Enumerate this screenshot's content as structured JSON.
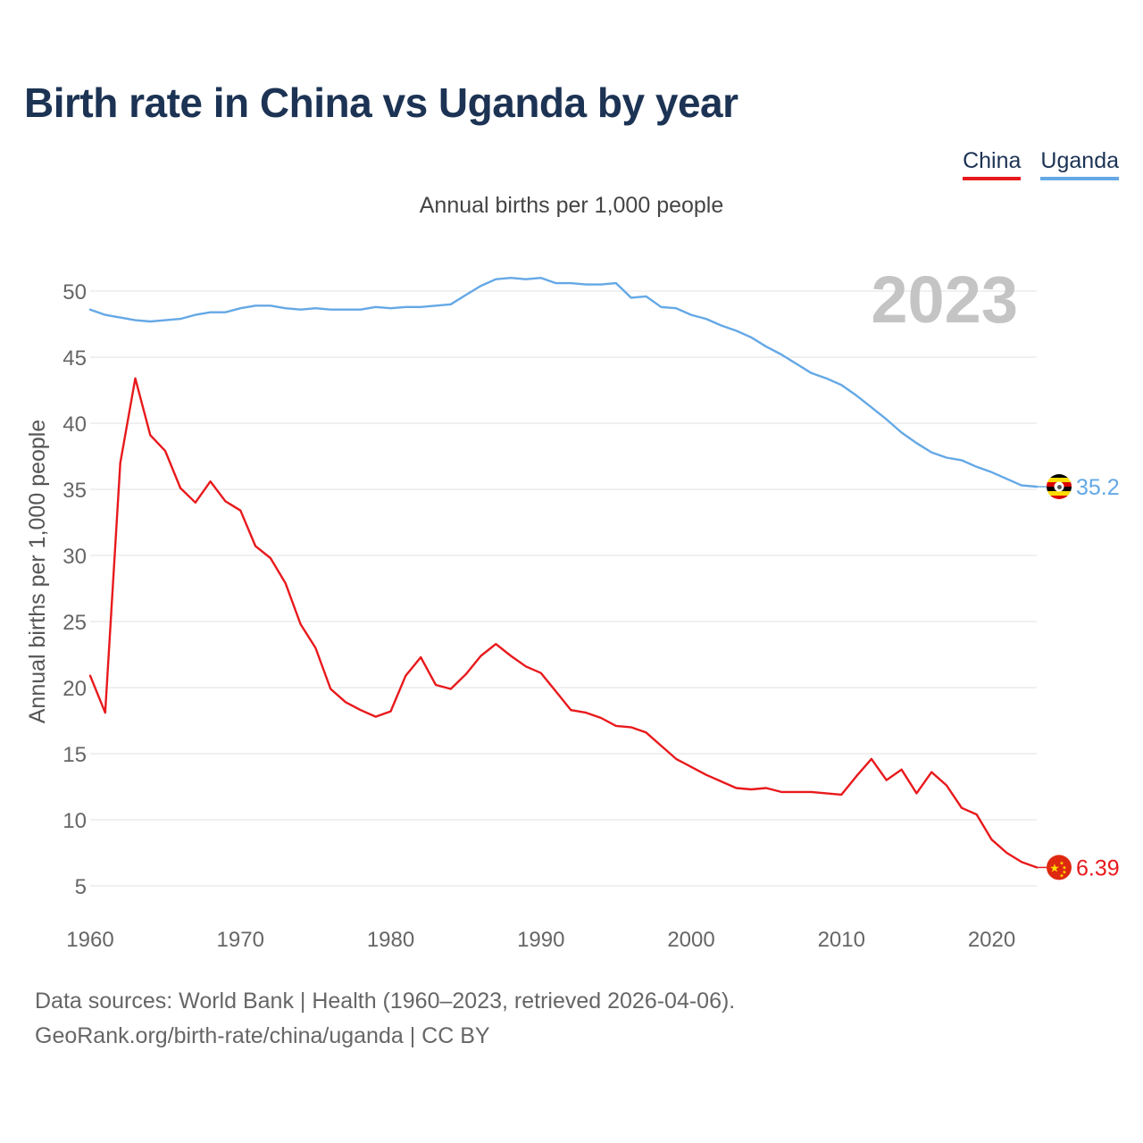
{
  "title": "Birth rate in China vs Uganda by year",
  "subtitle": "Annual births per 1,000 people",
  "year_watermark": "2023",
  "source_line1": "Data sources: World Bank | Health (1960–2023, retrieved 2026-04-06).",
  "source_line2": "GeoRank.org/birth-rate/china/uganda | CC BY",
  "colors": {
    "china": "#e8191c",
    "uganda": "#64a8e6",
    "grid": "#e6e6e6",
    "axis_text": "#666666",
    "title": "#1c3354",
    "watermark": "#c4c4c4"
  },
  "chart_data": {
    "type": "line",
    "ylabel": "Annual births per 1,000 people",
    "xlabel": "",
    "xlim": [
      1960,
      2023
    ],
    "ylim": [
      3,
      53
    ],
    "yticks": [
      5,
      10,
      15,
      20,
      25,
      30,
      35,
      40,
      45,
      50
    ],
    "xticks": [
      1960,
      1970,
      1980,
      1990,
      2000,
      2010,
      2020
    ],
    "legend_position": "top-right",
    "series": [
      {
        "name": "China",
        "color": "#e8191c",
        "end_label": "6.39",
        "flag": "china-flag",
        "x": [
          1960,
          1961,
          1962,
          1963,
          1964,
          1965,
          1966,
          1967,
          1968,
          1969,
          1970,
          1971,
          1972,
          1973,
          1974,
          1975,
          1976,
          1977,
          1978,
          1979,
          1980,
          1981,
          1982,
          1983,
          1984,
          1985,
          1986,
          1987,
          1988,
          1989,
          1990,
          1991,
          1992,
          1993,
          1994,
          1995,
          1996,
          1997,
          1998,
          1999,
          2000,
          2001,
          2002,
          2003,
          2004,
          2005,
          2006,
          2007,
          2008,
          2009,
          2010,
          2011,
          2012,
          2013,
          2014,
          2015,
          2016,
          2017,
          2018,
          2019,
          2020,
          2021,
          2022,
          2023
        ],
        "values": [
          20.9,
          18.1,
          37.0,
          43.4,
          39.1,
          37.9,
          35.1,
          34.0,
          35.6,
          34.1,
          33.4,
          30.7,
          29.8,
          27.9,
          24.8,
          23.0,
          19.9,
          18.9,
          18.3,
          17.8,
          18.2,
          20.9,
          22.3,
          20.2,
          19.9,
          21.0,
          22.4,
          23.3,
          22.4,
          21.6,
          21.1,
          19.7,
          18.3,
          18.1,
          17.7,
          17.1,
          17.0,
          16.6,
          15.6,
          14.6,
          14.0,
          13.4,
          12.9,
          12.4,
          12.3,
          12.4,
          12.1,
          12.1,
          12.1,
          12.0,
          11.9,
          13.3,
          14.6,
          13.0,
          13.8,
          12.0,
          13.6,
          12.6,
          10.9,
          10.4,
          8.5,
          7.5,
          6.8,
          6.39
        ]
      },
      {
        "name": "Uganda",
        "color": "#64a8e6",
        "end_label": "35.2",
        "flag": "uganda-flag",
        "x": [
          1960,
          1961,
          1962,
          1963,
          1964,
          1965,
          1966,
          1967,
          1968,
          1969,
          1970,
          1971,
          1972,
          1973,
          1974,
          1975,
          1976,
          1977,
          1978,
          1979,
          1980,
          1981,
          1982,
          1983,
          1984,
          1985,
          1986,
          1987,
          1988,
          1989,
          1990,
          1991,
          1992,
          1993,
          1994,
          1995,
          1996,
          1997,
          1998,
          1999,
          2000,
          2001,
          2002,
          2003,
          2004,
          2005,
          2006,
          2007,
          2008,
          2009,
          2010,
          2011,
          2012,
          2013,
          2014,
          2015,
          2016,
          2017,
          2018,
          2019,
          2020,
          2021,
          2022,
          2023
        ],
        "values": [
          48.6,
          48.2,
          48.0,
          47.8,
          47.7,
          47.8,
          47.9,
          48.2,
          48.4,
          48.4,
          48.7,
          48.9,
          48.9,
          48.7,
          48.6,
          48.7,
          48.6,
          48.6,
          48.6,
          48.8,
          48.7,
          48.8,
          48.8,
          48.9,
          49.0,
          49.7,
          50.4,
          50.9,
          51.0,
          50.9,
          51.0,
          50.6,
          50.6,
          50.5,
          50.5,
          50.6,
          49.5,
          49.6,
          48.8,
          48.7,
          48.2,
          47.9,
          47.4,
          47.0,
          46.5,
          45.8,
          45.2,
          44.5,
          43.8,
          43.4,
          42.9,
          42.1,
          41.2,
          40.3,
          39.3,
          38.5,
          37.8,
          37.4,
          37.2,
          36.7,
          36.3,
          35.8,
          35.3,
          35.2
        ]
      }
    ]
  }
}
